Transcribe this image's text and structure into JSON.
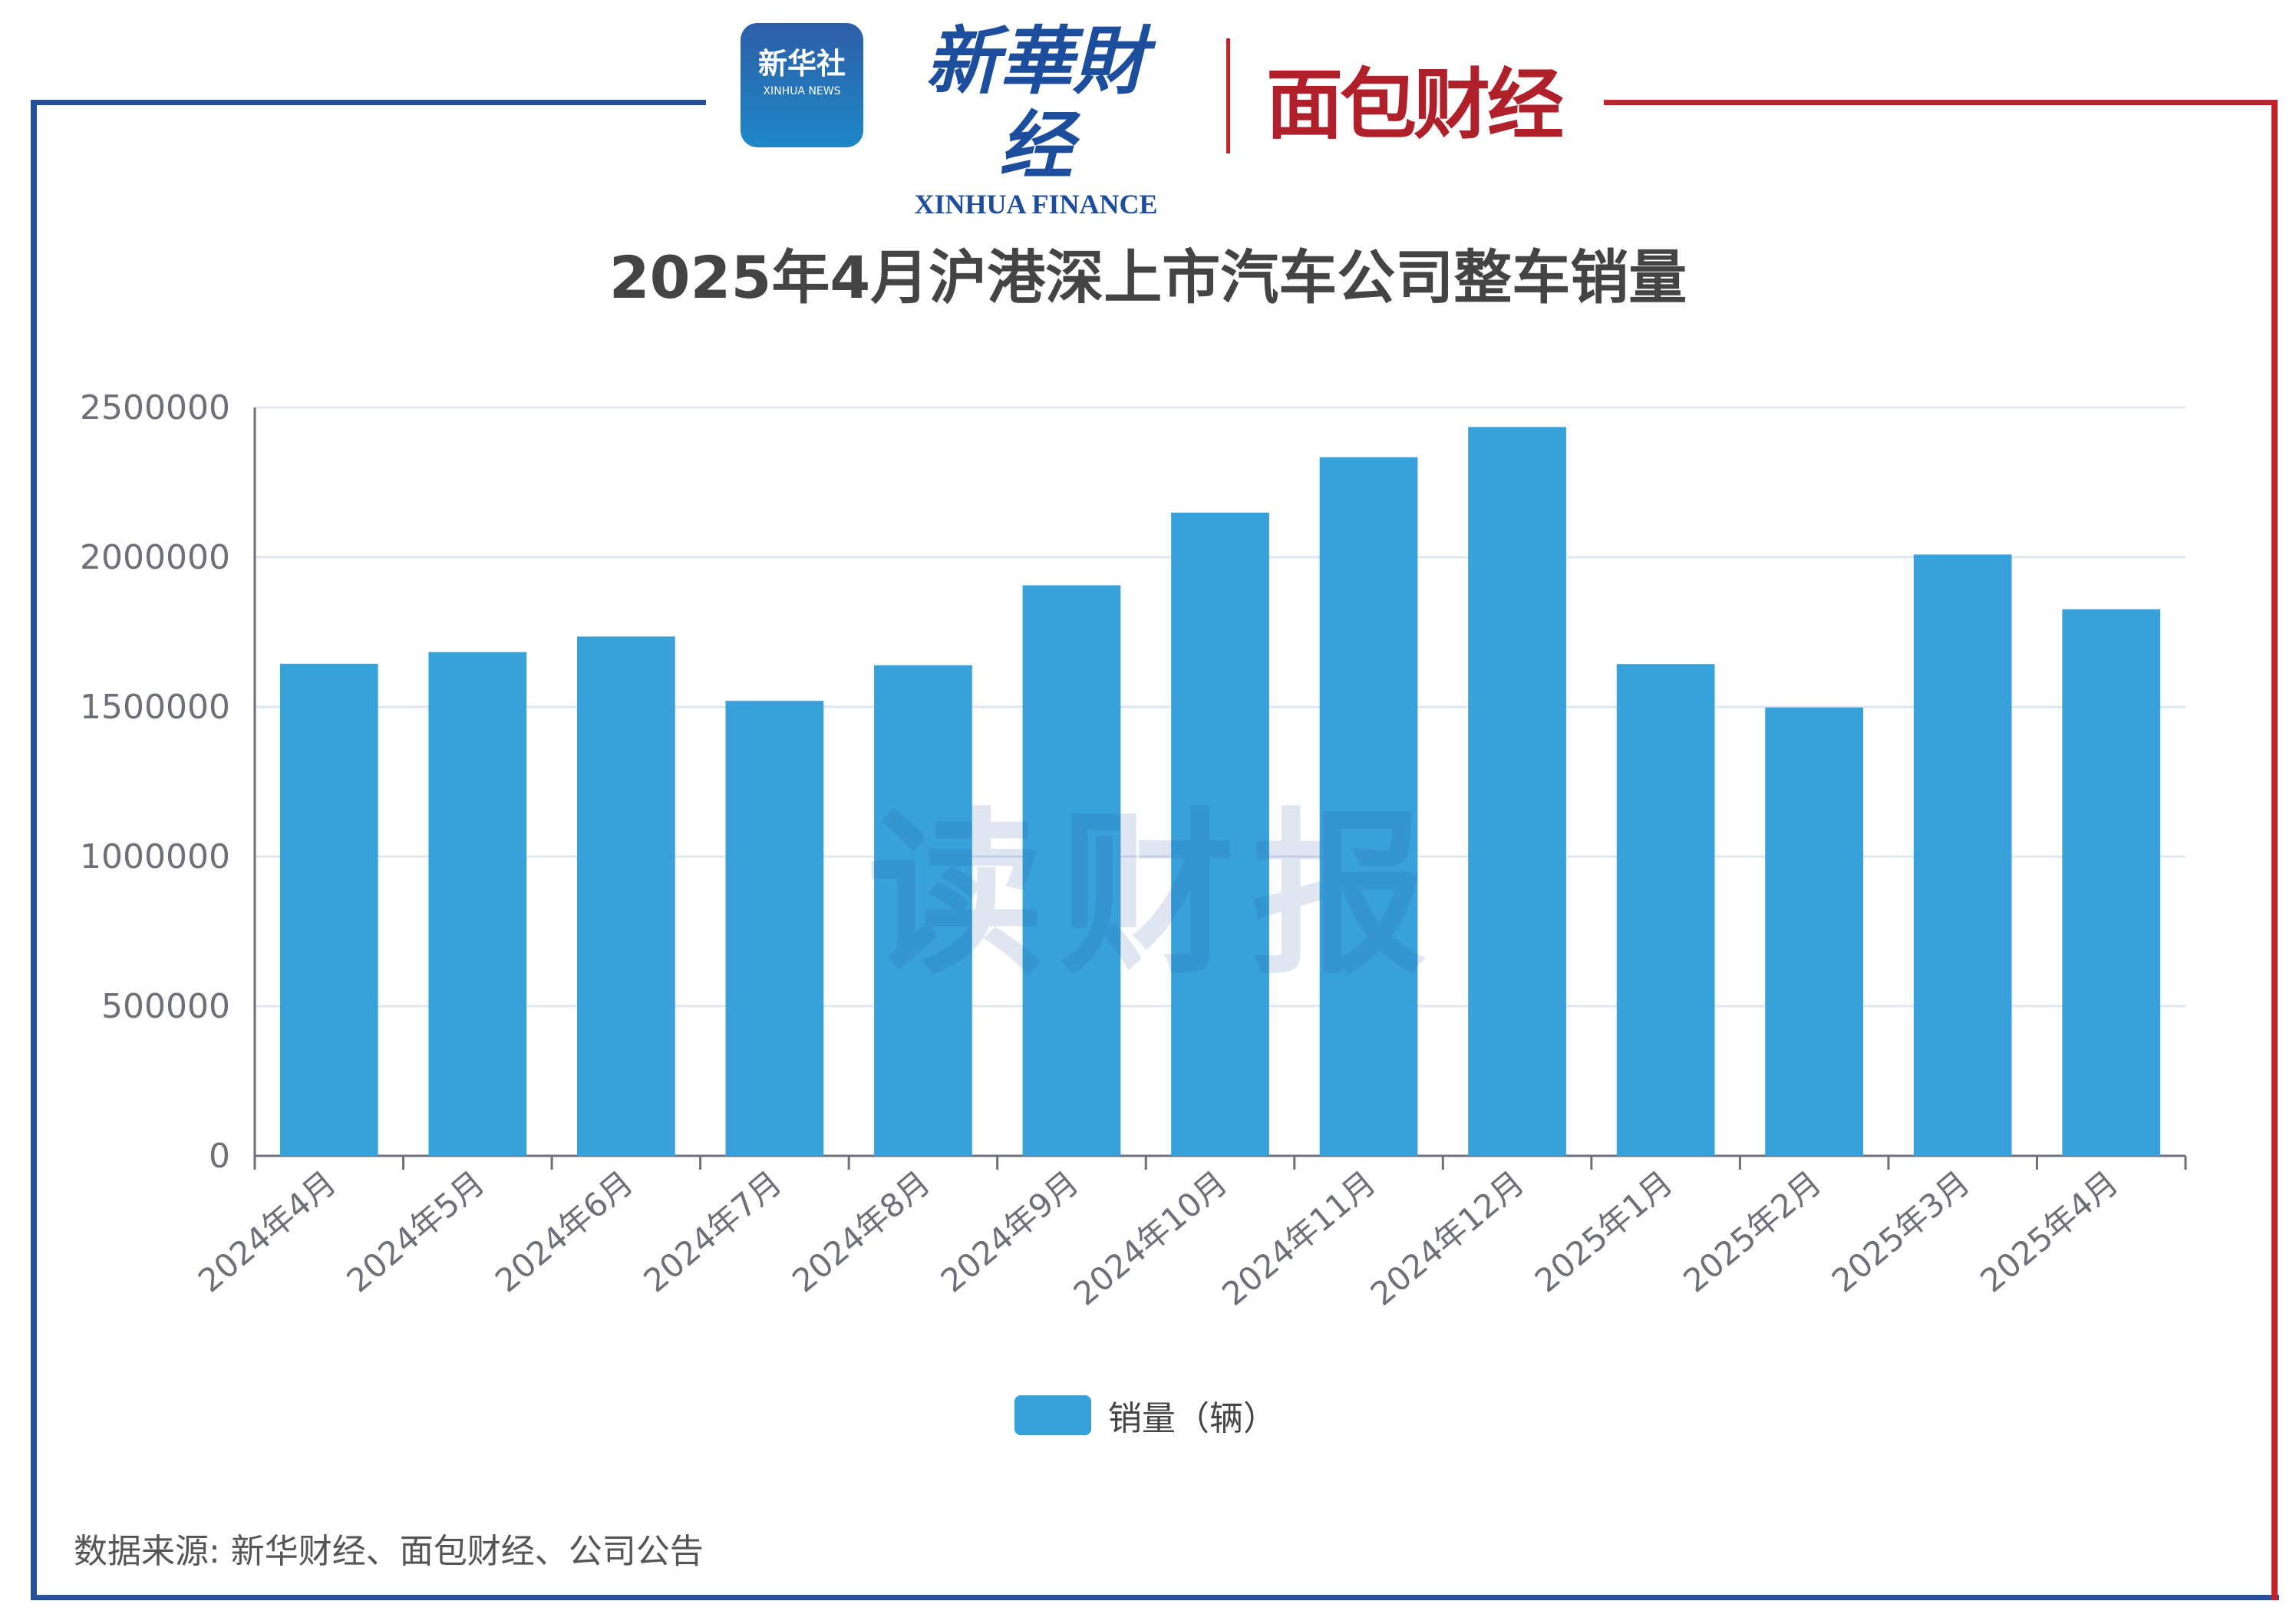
{
  "logos": {
    "xinhua_news": {
      "cn": "新华社",
      "en": "XINHUA NEWS"
    },
    "xinhua_finance": {
      "cn": "新華財经",
      "en": "XINHUA FINANCE"
    },
    "mianbao": {
      "cn": "面包财经"
    }
  },
  "watermark": "读财报",
  "source": "数据来源: 新华财经、面包财经、公司公告",
  "colors": {
    "bar": "#38a1d9",
    "frame_left": "#25519b",
    "frame_right": "#c0232b"
  },
  "chart_data": {
    "type": "bar",
    "title": "2025年4月沪港深上市汽车公司整车销量",
    "categories": [
      "2024年4月",
      "2024年5月",
      "2024年6月",
      "2024年7月",
      "2024年8月",
      "2024年9月",
      "2024年10月",
      "2024年11月",
      "2024年12月",
      "2025年1月",
      "2025年2月",
      "2025年3月",
      "2025年4月"
    ],
    "series": [
      {
        "name": "销量（辆）",
        "values": [
          1644000,
          1683000,
          1735000,
          1520000,
          1639000,
          1906000,
          2149000,
          2334000,
          2435000,
          1643000,
          1498000,
          2009000,
          1826000
        ]
      }
    ],
    "ylim": [
      0,
      2500000
    ],
    "yticks": [
      "0",
      "500000",
      "1000000",
      "1500000",
      "2000000",
      "2500000"
    ],
    "grid": true,
    "legend": "bottom",
    "xlabel": "",
    "ylabel": ""
  }
}
